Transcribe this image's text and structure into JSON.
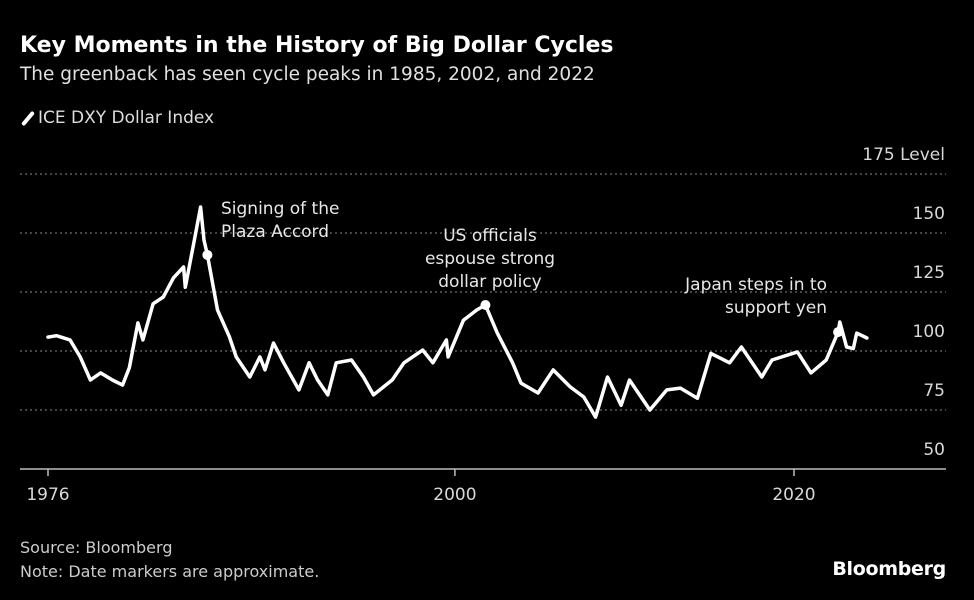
{
  "chart_data": {
    "type": "line",
    "title": "Key Moments in the History of Big Dollar Cycles",
    "subtitle": "The greenback has seen cycle peaks in 1985, 2002, and 2022",
    "ylabel": "Level",
    "ylim": [
      50,
      175
    ],
    "yticks": [
      50,
      75,
      100,
      125,
      150,
      175
    ],
    "ytick_labels": [
      "50",
      "75",
      "100",
      "125",
      "150",
      "175 Level"
    ],
    "xlim": [
      1974.4,
      2028.8
    ],
    "xticks": [
      1976,
      2000,
      2020
    ],
    "xtick_labels": [
      "1976",
      "2000",
      "2020"
    ],
    "grid": true,
    "legend_position": "top-left",
    "series": [
      {
        "name": "ICE DXY Dollar Index",
        "color": "#ffffff",
        "x": [
          1976.0,
          1976.5,
          1977.3,
          1977.9,
          1978.5,
          1979.1,
          1979.8,
          1980.4,
          1980.8,
          1981.3,
          1981.6,
          1982.2,
          1982.8,
          1983.4,
          1984.0,
          1984.1,
          1984.6,
          1985.0,
          1985.2,
          1985.4,
          1986.0,
          1986.7,
          1987.1,
          1987.9,
          1988.5,
          1988.8,
          1989.3,
          1989.9,
          1990.8,
          1991.4,
          1991.9,
          1992.5,
          1993.0,
          1993.9,
          1994.6,
          1995.2,
          1996.3,
          1997.0,
          1998.1,
          1998.7,
          1999.5,
          1999.6,
          2000.5,
          2001.3,
          2001.8,
          2002.5,
          2003.4,
          2003.9,
          2004.9,
          2005.8,
          2006.8,
          2007.6,
          2008.3,
          2009.0,
          2009.8,
          2010.3,
          2011.5,
          2012.5,
          2013.3,
          2014.3,
          2015.1,
          2016.2,
          2016.9,
          2018.1,
          2018.7,
          2020.2,
          2021.0,
          2021.9,
          2022.6,
          2022.7,
          2023.1,
          2023.5,
          2023.7,
          2024.3
        ],
        "y": [
          105.9,
          106.5,
          104.7,
          97.5,
          87.7,
          90.7,
          87.7,
          85.6,
          93.0,
          111.9,
          104.7,
          120.0,
          122.9,
          131.0,
          135.6,
          127.0,
          145.8,
          161.0,
          147.0,
          140.7,
          117.4,
          106.0,
          97.5,
          89.0,
          97.5,
          92.0,
          103.4,
          95.0,
          83.5,
          95.0,
          87.7,
          81.4,
          95.0,
          96.2,
          89.0,
          81.4,
          87.7,
          95.0,
          100.4,
          95.0,
          104.7,
          97.5,
          113.0,
          117.4,
          119.5,
          107.6,
          95.0,
          86.4,
          82.2,
          92.0,
          84.8,
          80.5,
          72.0,
          89.0,
          77.0,
          87.7,
          75.0,
          83.5,
          84.3,
          80.0,
          99.0,
          95.0,
          101.7,
          89.0,
          96.2,
          99.6,
          90.7,
          96.2,
          108.0,
          112.3,
          101.7,
          101.0,
          107.6,
          105.5
        ]
      }
    ],
    "annotations": [
      {
        "lines": [
          "Signing of the",
          "Plaza Accord"
        ],
        "x": 1985.4,
        "y": 140.7
      },
      {
        "lines": [
          "US officials",
          "espouse strong",
          "dollar policy"
        ],
        "x": 2001.8,
        "y": 119.5
      },
      {
        "lines": [
          "Japan steps in to",
          "support yen"
        ],
        "x": 2022.6,
        "y": 108.0
      }
    ]
  },
  "legend_label": "ICE DXY Dollar Index",
  "footer": {
    "source": "Source: Bloomberg",
    "note": "Note: Date markers are approximate.",
    "logo": "Bloomberg"
  }
}
